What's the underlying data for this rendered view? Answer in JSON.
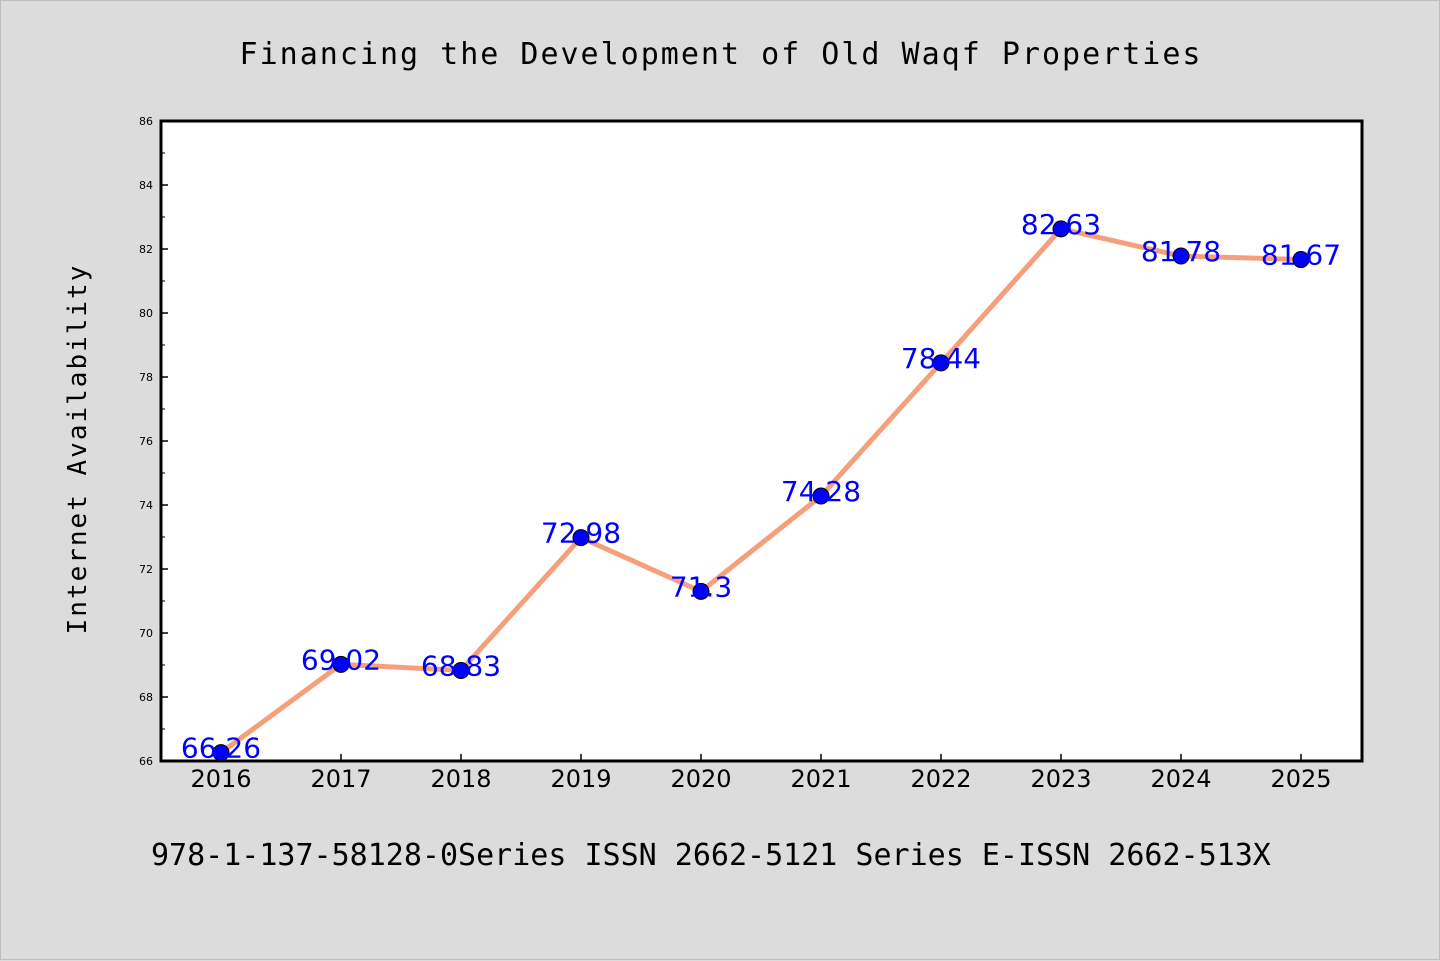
{
  "chart_data": {
    "type": "line",
    "title": "Financing the Development of Old Waqf Properties",
    "xlabel": "",
    "ylabel": "Internet Availability",
    "categories": [
      "2016",
      "2017",
      "2018",
      "2019",
      "2020",
      "2021",
      "2022",
      "2023",
      "2024",
      "2025"
    ],
    "series": [
      {
        "values": [
          66.26,
          69.02,
          68.83,
          72.98,
          71.3,
          74.28,
          78.44,
          82.63,
          81.78,
          81.67
        ],
        "labels": [
          "66.26",
          "69.02",
          "68.83",
          "72.98",
          "71.3",
          "74.28",
          "78.44",
          "82.63",
          "81.78",
          "81.67"
        ],
        "line_color": "#f5a07a",
        "marker_color": "#0000ff"
      }
    ],
    "ylim": [
      66,
      86
    ],
    "yticks": [
      "66",
      "68",
      "70",
      "72",
      "74",
      "76",
      "78",
      "80",
      "82",
      "84",
      "86"
    ],
    "grid": false,
    "legend": "none",
    "footer": "978-1-137-58128-0Series ISSN 2662-5121 Series E-ISSN 2662-513X",
    "label_color": "#0000ff",
    "background": "#dcdcdc",
    "plot_background": "#ffffff"
  }
}
